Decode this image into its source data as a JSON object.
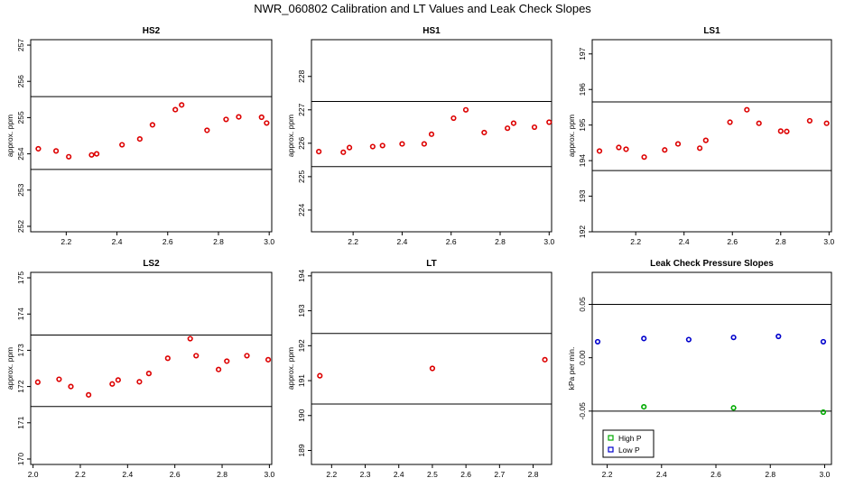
{
  "figure": {
    "title": "NWR_060802  Calibration and LT Values and Leak Check Slopes"
  },
  "chart_data": [
    {
      "type": "scatter",
      "title": "HS2",
      "ylabel": "approx. ppm",
      "xlim": [
        2.06,
        3.01
      ],
      "ylim": [
        251.85,
        257.15
      ],
      "xticks": [
        2.2,
        2.4,
        2.6,
        2.8,
        3.0
      ],
      "xtick_labels": [
        "2.2",
        "2.4",
        "2.6",
        "2.8",
        "3.0"
      ],
      "yticks": [
        252,
        253,
        254,
        255,
        256,
        257
      ],
      "ytick_labels": [
        "252",
        "253",
        "254",
        "255",
        "256",
        "257"
      ],
      "hlines": [
        253.57,
        255.58
      ],
      "series": [
        {
          "color": "#dd0000",
          "x": [
            2.09,
            2.16,
            2.21,
            2.3,
            2.32,
            2.42,
            2.49,
            2.54,
            2.63,
            2.655,
            2.755,
            2.83,
            2.88,
            2.97,
            2.99
          ],
          "y": [
            254.14,
            254.08,
            253.92,
            253.97,
            254.0,
            254.25,
            254.41,
            254.8,
            255.22,
            255.35,
            254.65,
            254.95,
            255.02,
            255.01,
            254.85
          ]
        }
      ]
    },
    {
      "type": "scatter",
      "title": "HS1",
      "ylabel": "approx. ppm",
      "xlim": [
        2.03,
        3.01
      ],
      "ylim": [
        223.35,
        229.1
      ],
      "xticks": [
        2.2,
        2.4,
        2.6,
        2.8,
        3.0
      ],
      "xtick_labels": [
        "2.2",
        "2.4",
        "2.6",
        "2.8",
        "3.0"
      ],
      "yticks": [
        224,
        225,
        226,
        227,
        228
      ],
      "ytick_labels": [
        "224",
        "225",
        "226",
        "227",
        "228"
      ],
      "hlines": [
        225.3,
        227.25
      ],
      "series": [
        {
          "color": "#dd0000",
          "x": [
            2.06,
            2.16,
            2.185,
            2.28,
            2.32,
            2.4,
            2.49,
            2.52,
            2.61,
            2.66,
            2.735,
            2.83,
            2.855,
            2.94,
            3.0
          ],
          "y": [
            225.75,
            225.73,
            225.87,
            225.9,
            225.93,
            225.98,
            225.98,
            226.27,
            226.75,
            227.0,
            226.32,
            226.45,
            226.6,
            226.48,
            226.63
          ]
        }
      ]
    },
    {
      "type": "scatter",
      "title": "LS1",
      "ylabel": "approx. ppm",
      "xlim": [
        2.02,
        3.01
      ],
      "ylim": [
        192.0,
        197.4
      ],
      "xticks": [
        2.2,
        2.4,
        2.6,
        2.8,
        3.0
      ],
      "xtick_labels": [
        "2.2",
        "2.4",
        "2.6",
        "2.8",
        "3.0"
      ],
      "yticks": [
        192,
        193,
        194,
        195,
        196,
        197
      ],
      "ytick_labels": [
        "192",
        "193",
        "194",
        "195",
        "196",
        "197"
      ],
      "hlines": [
        193.72,
        195.65
      ],
      "series": [
        {
          "color": "#dd0000",
          "x": [
            2.05,
            2.13,
            2.16,
            2.235,
            2.32,
            2.375,
            2.465,
            2.49,
            2.59,
            2.66,
            2.71,
            2.8,
            2.825,
            2.92,
            2.99
          ],
          "y": [
            194.27,
            194.37,
            194.32,
            194.1,
            194.3,
            194.47,
            194.35,
            194.57,
            195.08,
            195.43,
            195.05,
            194.83,
            194.82,
            195.12,
            195.05
          ]
        }
      ]
    },
    {
      "type": "scatter",
      "title": "LS2",
      "ylabel": "approx. ppm",
      "xlim": [
        1.99,
        3.01
      ],
      "ylim": [
        169.85,
        175.15
      ],
      "xticks": [
        2.0,
        2.2,
        2.4,
        2.6,
        2.8,
        3.0
      ],
      "xtick_labels": [
        "2.0",
        "2.2",
        "2.4",
        "2.6",
        "2.8",
        "3.0"
      ],
      "yticks": [
        170,
        171,
        172,
        173,
        174,
        175
      ],
      "ytick_labels": [
        "170",
        "171",
        "172",
        "173",
        "174",
        "175"
      ],
      "hlines": [
        171.45,
        173.42
      ],
      "series": [
        {
          "color": "#dd0000",
          "x": [
            2.02,
            2.11,
            2.16,
            2.235,
            2.335,
            2.36,
            2.45,
            2.49,
            2.57,
            2.665,
            2.69,
            2.785,
            2.82,
            2.905,
            2.995
          ],
          "y": [
            172.12,
            172.2,
            172.0,
            171.77,
            172.07,
            172.18,
            172.13,
            172.36,
            172.78,
            173.32,
            172.85,
            172.47,
            172.7,
            172.85,
            172.74
          ]
        }
      ]
    },
    {
      "type": "scatter",
      "title": "LT",
      "ylabel": "approx. ppm",
      "xlim": [
        2.14,
        2.855
      ],
      "ylim": [
        188.6,
        194.1
      ],
      "xticks": [
        2.2,
        2.3,
        2.4,
        2.5,
        2.6,
        2.7,
        2.8
      ],
      "xtick_labels": [
        "2.2",
        "2.3",
        "2.4",
        "2.5",
        "2.6",
        "2.7",
        "2.8"
      ],
      "yticks": [
        189,
        190,
        191,
        192,
        193,
        194
      ],
      "ytick_labels": [
        "189",
        "190",
        "191",
        "192",
        "193",
        "194"
      ],
      "hlines": [
        190.33,
        192.35
      ],
      "series": [
        {
          "color": "#dd0000",
          "x": [
            2.165,
            2.5,
            2.835
          ],
          "y": [
            191.14,
            191.35,
            191.6
          ]
        }
      ]
    },
    {
      "type": "scatter",
      "title": "Leak Check Pressure Slopes",
      "ylabel": "kPa per min.",
      "xlim": [
        2.145,
        3.025
      ],
      "ylim": [
        -0.1,
        0.08
      ],
      "xticks": [
        2.2,
        2.4,
        2.6,
        2.8,
        3.0
      ],
      "xtick_labels": [
        "2.2",
        "2.4",
        "2.6",
        "2.8",
        "3.0"
      ],
      "yticks": [
        -0.05,
        0.0,
        0.05
      ],
      "ytick_labels": [
        "-0.05",
        "0.00",
        "0.05"
      ],
      "hlines": [
        -0.05,
        0.05
      ],
      "legend": {
        "position": "bottom-left"
      },
      "series": [
        {
          "name": "High P",
          "color": "#00aa00",
          "x": [
            2.335,
            2.665,
            2.995
          ],
          "y": [
            -0.046,
            -0.047,
            -0.051
          ]
        },
        {
          "name": "Low P",
          "color": "#0000cc",
          "x": [
            2.165,
            2.335,
            2.5,
            2.665,
            2.83,
            2.995
          ],
          "y": [
            0.015,
            0.018,
            0.017,
            0.019,
            0.02,
            0.015
          ]
        }
      ]
    }
  ]
}
